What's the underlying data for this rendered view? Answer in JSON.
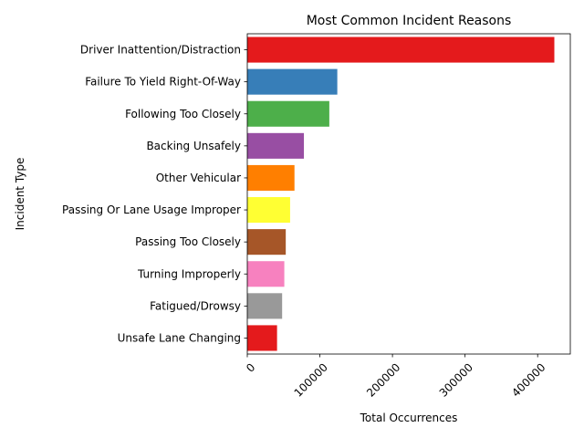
{
  "chart_data": {
    "type": "bar",
    "orientation": "horizontal",
    "title": "Most Common Incident Reasons",
    "xlabel": "Total Occurrences",
    "ylabel": "Incident Type",
    "xlim": [
      0,
      445000
    ],
    "xticks": [
      0,
      100000,
      200000,
      300000,
      400000
    ],
    "xtick_labels": [
      "0",
      "100000",
      "200000",
      "300000",
      "400000"
    ],
    "xtick_rotation": -45,
    "grid": false,
    "legend": "none",
    "categories": [
      "Driver Inattention/Distraction",
      "Failure To Yield Right-Of-Way",
      "Following Too Closely",
      "Backing Unsafely",
      "Other Vehicular",
      "Passing Or Lane Usage Improper",
      "Passing Too Closely",
      "Turning Improperly",
      "Fatigued/Drowsy",
      "Unsafe Lane Changing"
    ],
    "values": [
      423000,
      124000,
      113000,
      78000,
      65000,
      59000,
      53000,
      51000,
      48000,
      41000
    ],
    "colors": [
      "#e41a1c",
      "#377eb8",
      "#4daf4a",
      "#984ea3",
      "#ff7f00",
      "#ffff33",
      "#a65628",
      "#f781bf",
      "#999999",
      "#e41a1c"
    ]
  }
}
